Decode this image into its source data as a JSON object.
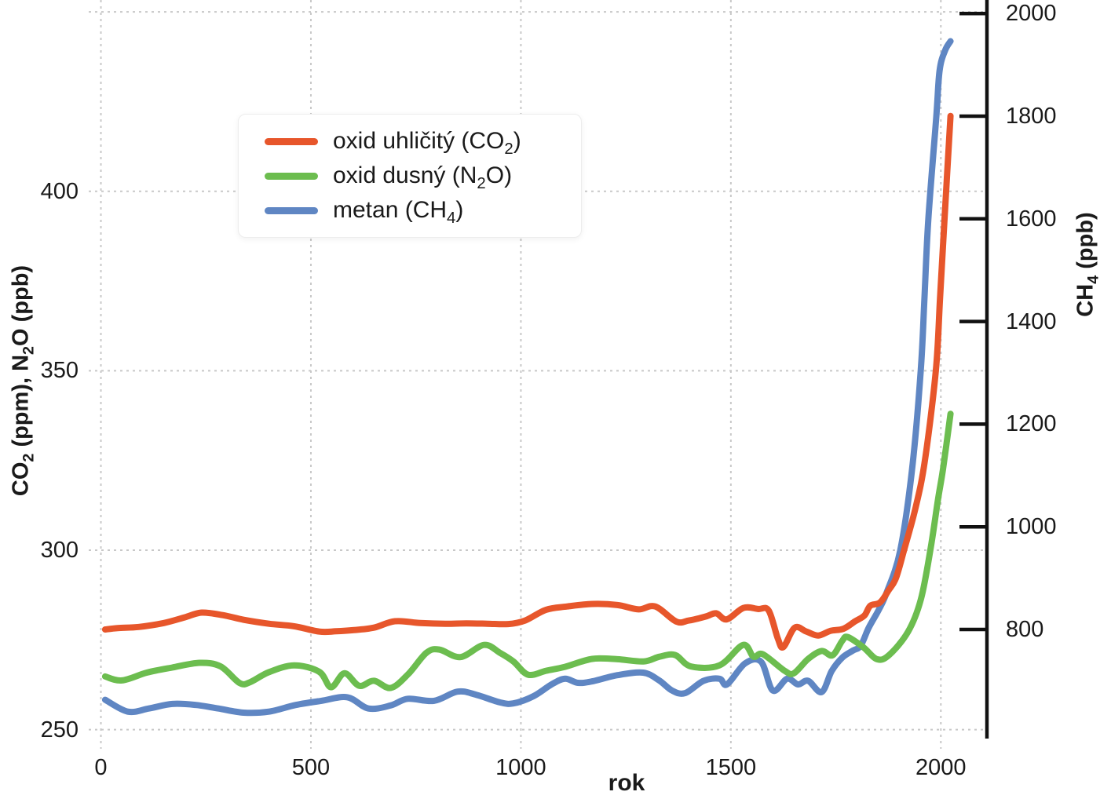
{
  "page": {
    "background": "#ffffff"
  },
  "chart_data": {
    "type": "line",
    "title": "",
    "xlabel": "rok",
    "xlim": [
      -29,
      2106
    ],
    "x_ticks": [
      0,
      500,
      1000,
      1500,
      2000
    ],
    "grid": true,
    "grid_color": "#c8c8c8",
    "axis_color": "#111111",
    "legend_position": "upper left",
    "left_axis": {
      "label": "CO2 (ppm), N2O (ppb)",
      "label_parts": [
        {
          "t": "CO"
        },
        {
          "t": "2",
          "sub": true
        },
        {
          "t": " (ppm), N"
        },
        {
          "t": "2",
          "sub": true
        },
        {
          "t": "O (ppb)"
        }
      ],
      "ticks": [
        250,
        300,
        350,
        400
      ],
      "grid_values": [
        250,
        300,
        350,
        400,
        450
      ],
      "ylim": [
        247.5,
        453.3
      ]
    },
    "right_axis": {
      "label": "CH4 (ppb)",
      "label_parts": [
        {
          "t": "CH"
        },
        {
          "t": "4",
          "sub": true
        },
        {
          "t": " (ppb)"
        }
      ],
      "ticks": [
        800,
        1000,
        1200,
        1400,
        1600,
        1800,
        2000
      ],
      "ylim": [
        587.5,
        2026.3
      ]
    },
    "series": [
      {
        "id": "co2",
        "label": "oxid uhličitý (CO2)",
        "label_parts": [
          {
            "t": "oxid uhličitý (CO"
          },
          {
            "t": "2",
            "sub": true
          },
          {
            "t": ")"
          }
        ],
        "axis": "left",
        "color": "#e7562b",
        "points": [
          [
            10,
            277.9
          ],
          [
            40,
            278.3
          ],
          [
            90,
            278.6
          ],
          [
            150,
            279.7
          ],
          [
            200,
            281.3
          ],
          [
            240,
            282.6
          ],
          [
            290,
            281.9
          ],
          [
            340,
            280.6
          ],
          [
            400,
            279.5
          ],
          [
            460,
            278.8
          ],
          [
            520,
            277.3
          ],
          [
            560,
            277.4
          ],
          [
            600,
            277.7
          ],
          [
            650,
            278.4
          ],
          [
            700,
            280.2
          ],
          [
            760,
            279.7
          ],
          [
            820,
            279.5
          ],
          [
            870,
            279.6
          ],
          [
            920,
            279.5
          ],
          [
            970,
            279.4
          ],
          [
            1010,
            280.4
          ],
          [
            1060,
            283.4
          ],
          [
            1110,
            284.3
          ],
          [
            1170,
            285.0
          ],
          [
            1230,
            284.7
          ],
          [
            1280,
            283.5
          ],
          [
            1320,
            284.3
          ],
          [
            1370,
            280.1
          ],
          [
            1400,
            280.4
          ],
          [
            1440,
            281.5
          ],
          [
            1465,
            282.4
          ],
          [
            1490,
            280.7
          ],
          [
            1530,
            283.9
          ],
          [
            1565,
            283.6
          ],
          [
            1590,
            283.2
          ],
          [
            1612,
            275.3
          ],
          [
            1625,
            273.0
          ],
          [
            1652,
            278.4
          ],
          [
            1680,
            277.3
          ],
          [
            1708,
            276.2
          ],
          [
            1737,
            277.5
          ],
          [
            1768,
            278.1
          ],
          [
            1795,
            280.1
          ],
          [
            1818,
            281.8
          ],
          [
            1832,
            284.5
          ],
          [
            1855,
            285.4
          ],
          [
            1875,
            288.7
          ],
          [
            1893,
            292.2
          ],
          [
            1913,
            300.3
          ],
          [
            1940,
            311.9
          ],
          [
            1962,
            325.0
          ],
          [
            1988,
            350.0
          ],
          [
            1998,
            370.0
          ],
          [
            2010,
            395.0
          ],
          [
            2023,
            421.0
          ]
        ]
      },
      {
        "id": "n2o",
        "label": "oxid dusný (N2O)",
        "label_parts": [
          {
            "t": "oxid dusný (N"
          },
          {
            "t": "2",
            "sub": true
          },
          {
            "t": "O)"
          }
        ],
        "axis": "left",
        "color": "#6cbd4f",
        "points": [
          [
            10,
            264.8
          ],
          [
            50,
            263.7
          ],
          [
            110,
            265.9
          ],
          [
            170,
            267.3
          ],
          [
            235,
            268.6
          ],
          [
            285,
            267.6
          ],
          [
            330,
            263.0
          ],
          [
            355,
            263.2
          ],
          [
            400,
            266.0
          ],
          [
            460,
            267.9
          ],
          [
            520,
            266.1
          ],
          [
            548,
            261.8
          ],
          [
            580,
            265.7
          ],
          [
            615,
            262.2
          ],
          [
            650,
            263.6
          ],
          [
            690,
            261.6
          ],
          [
            732,
            265.5
          ],
          [
            775,
            271.4
          ],
          [
            806,
            272.3
          ],
          [
            856,
            270.2
          ],
          [
            912,
            273.6
          ],
          [
            950,
            271.4
          ],
          [
            982,
            269.0
          ],
          [
            1017,
            265.3
          ],
          [
            1060,
            266.4
          ],
          [
            1105,
            267.5
          ],
          [
            1170,
            269.7
          ],
          [
            1230,
            269.6
          ],
          [
            1292,
            269.0
          ],
          [
            1330,
            270.3
          ],
          [
            1367,
            270.8
          ],
          [
            1405,
            267.6
          ],
          [
            1473,
            267.9
          ],
          [
            1529,
            273.6
          ],
          [
            1554,
            270.3
          ],
          [
            1576,
            271.0
          ],
          [
            1628,
            266.4
          ],
          [
            1650,
            265.7
          ],
          [
            1684,
            269.7
          ],
          [
            1716,
            271.9
          ],
          [
            1742,
            270.7
          ],
          [
            1765,
            274.7
          ],
          [
            1778,
            275.8
          ],
          [
            1815,
            273.0
          ],
          [
            1848,
            269.6
          ],
          [
            1877,
            270.8
          ],
          [
            1922,
            277.3
          ],
          [
            1952,
            286.1
          ],
          [
            1975,
            300.0
          ],
          [
            1993,
            314.0
          ],
          [
            2005,
            322.5
          ],
          [
            2023,
            338.0
          ]
        ]
      },
      {
        "id": "ch4",
        "label": "metan (CH4)",
        "label_parts": [
          {
            "t": "metan (CH"
          },
          {
            "t": "4",
            "sub": true
          },
          {
            "t": ")"
          }
        ],
        "axis": "right",
        "color": "#5f86c3",
        "points": [
          [
            10,
            663
          ],
          [
            64,
            640
          ],
          [
            114,
            646
          ],
          [
            170,
            655
          ],
          [
            226,
            653
          ],
          [
            280,
            646
          ],
          [
            340,
            638
          ],
          [
            400,
            640
          ],
          [
            464,
            653
          ],
          [
            525,
            661
          ],
          [
            587,
            668
          ],
          [
            637,
            646
          ],
          [
            690,
            652
          ],
          [
            731,
            665
          ],
          [
            793,
            661
          ],
          [
            849,
            679
          ],
          [
            893,
            673
          ],
          [
            950,
            658
          ],
          [
            982,
            656
          ],
          [
            1030,
            670
          ],
          [
            1073,
            693
          ],
          [
            1105,
            704
          ],
          [
            1136,
            696
          ],
          [
            1170,
            699
          ],
          [
            1230,
            711
          ],
          [
            1291,
            716
          ],
          [
            1329,
            701
          ],
          [
            1360,
            681
          ],
          [
            1391,
            676
          ],
          [
            1435,
            700
          ],
          [
            1473,
            704
          ],
          [
            1491,
            693
          ],
          [
            1534,
            734
          ],
          [
            1572,
            737
          ],
          [
            1600,
            681
          ],
          [
            1634,
            704
          ],
          [
            1660,
            693
          ],
          [
            1684,
            700
          ],
          [
            1716,
            678
          ],
          [
            1740,
            719
          ],
          [
            1765,
            745
          ],
          [
            1791,
            759
          ],
          [
            1809,
            768
          ],
          [
            1828,
            803
          ],
          [
            1852,
            838
          ],
          [
            1871,
            872
          ],
          [
            1903,
            953
          ],
          [
            1931,
            1109
          ],
          [
            1952,
            1303
          ],
          [
            1961,
            1445
          ],
          [
            1970,
            1598
          ],
          [
            1989,
            1797
          ],
          [
            1997,
            1889
          ],
          [
            2010,
            1928
          ],
          [
            2023,
            1946
          ]
        ]
      }
    ]
  }
}
